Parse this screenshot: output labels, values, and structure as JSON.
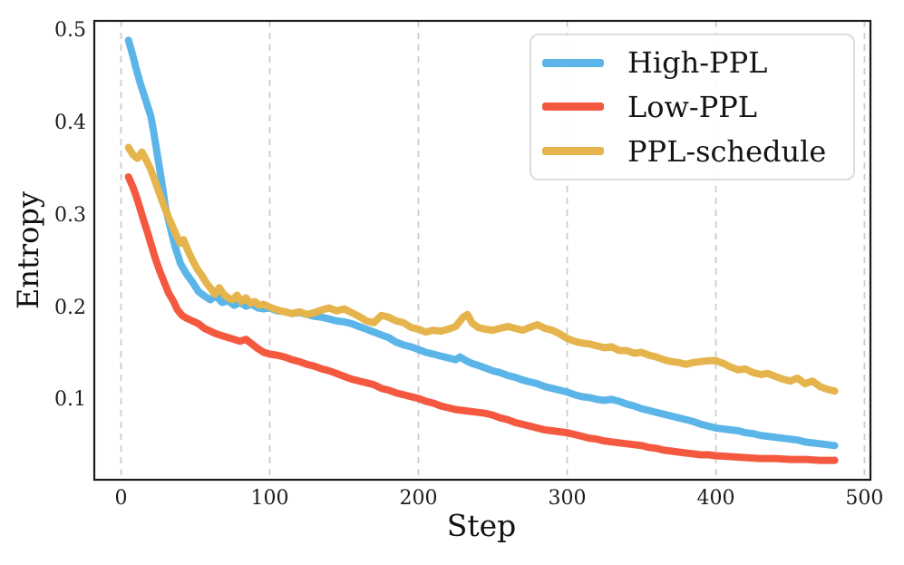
{
  "figure": {
    "background": "#ffffff",
    "spine_color": "#1a1a1a",
    "grid_color": "#cbcbcb",
    "tick_color": "#1c1c1c"
  },
  "chart_data": {
    "type": "line",
    "title": "",
    "xlabel": "Step",
    "ylabel": "Entropy",
    "xlim": [
      -18,
      504
    ],
    "ylim": [
      0.014,
      0.511
    ],
    "x_ticks": [
      0,
      100,
      200,
      300,
      400,
      500
    ],
    "y_ticks": [
      0.1,
      0.2,
      0.3,
      0.4,
      0.5
    ],
    "grid": "vertical-dashed-only",
    "legend_position": "upper-right",
    "line_width": 8,
    "series": [
      {
        "name": "High-PPL",
        "color": "#5BB5E8",
        "points": [
          [
            5,
            0.49
          ],
          [
            8,
            0.473
          ],
          [
            10,
            0.46
          ],
          [
            13,
            0.443
          ],
          [
            16,
            0.428
          ],
          [
            18,
            0.418
          ],
          [
            20,
            0.408
          ],
          [
            22,
            0.39
          ],
          [
            24,
            0.37
          ],
          [
            26,
            0.35
          ],
          [
            28,
            0.33
          ],
          [
            30,
            0.308
          ],
          [
            33,
            0.288
          ],
          [
            36,
            0.268
          ],
          [
            40,
            0.248
          ],
          [
            44,
            0.237
          ],
          [
            48,
            0.228
          ],
          [
            52,
            0.218
          ],
          [
            56,
            0.213
          ],
          [
            60,
            0.209
          ],
          [
            64,
            0.213
          ],
          [
            68,
            0.206
          ],
          [
            72,
            0.208
          ],
          [
            76,
            0.203
          ],
          [
            80,
            0.206
          ],
          [
            84,
            0.202
          ],
          [
            88,
            0.204
          ],
          [
            92,
            0.2
          ],
          [
            96,
            0.199
          ],
          [
            100,
            0.2
          ],
          [
            105,
            0.197
          ],
          [
            110,
            0.196
          ],
          [
            115,
            0.194
          ],
          [
            120,
            0.195
          ],
          [
            125,
            0.193
          ],
          [
            130,
            0.191
          ],
          [
            135,
            0.19
          ],
          [
            140,
            0.188
          ],
          [
            145,
            0.186
          ],
          [
            150,
            0.185
          ],
          [
            155,
            0.183
          ],
          [
            160,
            0.18
          ],
          [
            165,
            0.177
          ],
          [
            170,
            0.174
          ],
          [
            175,
            0.171
          ],
          [
            180,
            0.168
          ],
          [
            185,
            0.163
          ],
          [
            190,
            0.16
          ],
          [
            195,
            0.158
          ],
          [
            200,
            0.155
          ],
          [
            205,
            0.152
          ],
          [
            210,
            0.15
          ],
          [
            215,
            0.148
          ],
          [
            220,
            0.146
          ],
          [
            225,
            0.144
          ],
          [
            228,
            0.147
          ],
          [
            232,
            0.143
          ],
          [
            236,
            0.14
          ],
          [
            240,
            0.138
          ],
          [
            245,
            0.135
          ],
          [
            250,
            0.132
          ],
          [
            255,
            0.13
          ],
          [
            260,
            0.127
          ],
          [
            265,
            0.125
          ],
          [
            270,
            0.122
          ],
          [
            275,
            0.12
          ],
          [
            280,
            0.118
          ],
          [
            285,
            0.115
          ],
          [
            290,
            0.113
          ],
          [
            295,
            0.111
          ],
          [
            300,
            0.109
          ],
          [
            305,
            0.106
          ],
          [
            310,
            0.104
          ],
          [
            315,
            0.103
          ],
          [
            320,
            0.101
          ],
          [
            325,
            0.1
          ],
          [
            330,
            0.101
          ],
          [
            335,
            0.099
          ],
          [
            340,
            0.096
          ],
          [
            345,
            0.094
          ],
          [
            350,
            0.091
          ],
          [
            355,
            0.089
          ],
          [
            360,
            0.087
          ],
          [
            365,
            0.085
          ],
          [
            370,
            0.083
          ],
          [
            375,
            0.081
          ],
          [
            380,
            0.079
          ],
          [
            385,
            0.077
          ],
          [
            390,
            0.074
          ],
          [
            395,
            0.072
          ],
          [
            400,
            0.07
          ],
          [
            405,
            0.069
          ],
          [
            410,
            0.068
          ],
          [
            415,
            0.067
          ],
          [
            420,
            0.065
          ],
          [
            425,
            0.064
          ],
          [
            430,
            0.062
          ],
          [
            435,
            0.061
          ],
          [
            440,
            0.06
          ],
          [
            445,
            0.059
          ],
          [
            450,
            0.058
          ],
          [
            455,
            0.057
          ],
          [
            460,
            0.055
          ],
          [
            465,
            0.054
          ],
          [
            470,
            0.053
          ],
          [
            475,
            0.052
          ],
          [
            480,
            0.051
          ]
        ]
      },
      {
        "name": "Low-PPL",
        "color": "#F4593F",
        "points": [
          [
            5,
            0.342
          ],
          [
            8,
            0.331
          ],
          [
            10,
            0.322
          ],
          [
            12,
            0.312
          ],
          [
            15,
            0.296
          ],
          [
            18,
            0.281
          ],
          [
            20,
            0.27
          ],
          [
            23,
            0.254
          ],
          [
            26,
            0.24
          ],
          [
            29,
            0.228
          ],
          [
            32,
            0.216
          ],
          [
            35,
            0.208
          ],
          [
            38,
            0.198
          ],
          [
            41,
            0.192
          ],
          [
            44,
            0.189
          ],
          [
            48,
            0.186
          ],
          [
            52,
            0.183
          ],
          [
            56,
            0.178
          ],
          [
            60,
            0.175
          ],
          [
            64,
            0.172
          ],
          [
            68,
            0.17
          ],
          [
            72,
            0.168
          ],
          [
            76,
            0.166
          ],
          [
            80,
            0.164
          ],
          [
            84,
            0.166
          ],
          [
            88,
            0.161
          ],
          [
            92,
            0.156
          ],
          [
            96,
            0.152
          ],
          [
            100,
            0.15
          ],
          [
            105,
            0.149
          ],
          [
            110,
            0.147
          ],
          [
            115,
            0.144
          ],
          [
            120,
            0.142
          ],
          [
            125,
            0.139
          ],
          [
            130,
            0.137
          ],
          [
            135,
            0.134
          ],
          [
            140,
            0.132
          ],
          [
            145,
            0.129
          ],
          [
            150,
            0.126
          ],
          [
            155,
            0.123
          ],
          [
            160,
            0.121
          ],
          [
            165,
            0.119
          ],
          [
            170,
            0.117
          ],
          [
            175,
            0.113
          ],
          [
            180,
            0.111
          ],
          [
            185,
            0.108
          ],
          [
            190,
            0.106
          ],
          [
            195,
            0.104
          ],
          [
            200,
            0.102
          ],
          [
            205,
            0.099
          ],
          [
            210,
            0.097
          ],
          [
            215,
            0.094
          ],
          [
            220,
            0.092
          ],
          [
            225,
            0.09
          ],
          [
            230,
            0.089
          ],
          [
            235,
            0.088
          ],
          [
            240,
            0.087
          ],
          [
            245,
            0.086
          ],
          [
            250,
            0.084
          ],
          [
            255,
            0.081
          ],
          [
            260,
            0.079
          ],
          [
            265,
            0.076
          ],
          [
            270,
            0.074
          ],
          [
            275,
            0.072
          ],
          [
            280,
            0.07
          ],
          [
            285,
            0.068
          ],
          [
            290,
            0.067
          ],
          [
            295,
            0.066
          ],
          [
            300,
            0.065
          ],
          [
            305,
            0.063
          ],
          [
            310,
            0.061
          ],
          [
            315,
            0.059
          ],
          [
            320,
            0.058
          ],
          [
            325,
            0.056
          ],
          [
            330,
            0.055
          ],
          [
            335,
            0.054
          ],
          [
            340,
            0.053
          ],
          [
            345,
            0.052
          ],
          [
            350,
            0.051
          ],
          [
            355,
            0.049
          ],
          [
            360,
            0.048
          ],
          [
            365,
            0.046
          ],
          [
            370,
            0.045
          ],
          [
            375,
            0.044
          ],
          [
            380,
            0.043
          ],
          [
            385,
            0.042
          ],
          [
            390,
            0.041
          ],
          [
            395,
            0.041
          ],
          [
            400,
            0.04
          ],
          [
            410,
            0.039
          ],
          [
            420,
            0.038
          ],
          [
            430,
            0.037
          ],
          [
            440,
            0.037
          ],
          [
            450,
            0.036
          ],
          [
            460,
            0.036
          ],
          [
            470,
            0.035
          ],
          [
            480,
            0.035
          ]
        ]
      },
      {
        "name": "PPL-schedule",
        "color": "#E6B44C",
        "points": [
          [
            5,
            0.374
          ],
          [
            8,
            0.366
          ],
          [
            11,
            0.362
          ],
          [
            14,
            0.369
          ],
          [
            17,
            0.36
          ],
          [
            20,
            0.35
          ],
          [
            23,
            0.337
          ],
          [
            26,
            0.323
          ],
          [
            29,
            0.31
          ],
          [
            32,
            0.298
          ],
          [
            35,
            0.287
          ],
          [
            38,
            0.276
          ],
          [
            40,
            0.27
          ],
          [
            42,
            0.274
          ],
          [
            45,
            0.262
          ],
          [
            48,
            0.252
          ],
          [
            51,
            0.243
          ],
          [
            54,
            0.236
          ],
          [
            57,
            0.228
          ],
          [
            60,
            0.222
          ],
          [
            63,
            0.215
          ],
          [
            66,
            0.222
          ],
          [
            69,
            0.215
          ],
          [
            72,
            0.211
          ],
          [
            75,
            0.209
          ],
          [
            78,
            0.214
          ],
          [
            81,
            0.207
          ],
          [
            84,
            0.211
          ],
          [
            87,
            0.205
          ],
          [
            90,
            0.207
          ],
          [
            93,
            0.203
          ],
          [
            96,
            0.204
          ],
          [
            100,
            0.201
          ],
          [
            105,
            0.198
          ],
          [
            110,
            0.196
          ],
          [
            115,
            0.194
          ],
          [
            120,
            0.196
          ],
          [
            125,
            0.193
          ],
          [
            130,
            0.195
          ],
          [
            135,
            0.198
          ],
          [
            140,
            0.2
          ],
          [
            145,
            0.197
          ],
          [
            150,
            0.199
          ],
          [
            155,
            0.195
          ],
          [
            160,
            0.191
          ],
          [
            165,
            0.186
          ],
          [
            170,
            0.184
          ],
          [
            175,
            0.192
          ],
          [
            180,
            0.19
          ],
          [
            185,
            0.186
          ],
          [
            190,
            0.184
          ],
          [
            195,
            0.179
          ],
          [
            200,
            0.177
          ],
          [
            205,
            0.174
          ],
          [
            210,
            0.176
          ],
          [
            215,
            0.175
          ],
          [
            220,
            0.177
          ],
          [
            225,
            0.18
          ],
          [
            230,
            0.19
          ],
          [
            233,
            0.193
          ],
          [
            236,
            0.184
          ],
          [
            240,
            0.179
          ],
          [
            245,
            0.177
          ],
          [
            250,
            0.176
          ],
          [
            255,
            0.178
          ],
          [
            260,
            0.18
          ],
          [
            265,
            0.178
          ],
          [
            270,
            0.176
          ],
          [
            275,
            0.179
          ],
          [
            280,
            0.182
          ],
          [
            285,
            0.178
          ],
          [
            290,
            0.176
          ],
          [
            295,
            0.172
          ],
          [
            300,
            0.167
          ],
          [
            305,
            0.164
          ],
          [
            310,
            0.162
          ],
          [
            315,
            0.161
          ],
          [
            320,
            0.159
          ],
          [
            325,
            0.157
          ],
          [
            330,
            0.158
          ],
          [
            335,
            0.154
          ],
          [
            340,
            0.154
          ],
          [
            345,
            0.151
          ],
          [
            350,
            0.152
          ],
          [
            355,
            0.149
          ],
          [
            360,
            0.147
          ],
          [
            365,
            0.144
          ],
          [
            370,
            0.142
          ],
          [
            375,
            0.141
          ],
          [
            380,
            0.139
          ],
          [
            385,
            0.141
          ],
          [
            390,
            0.142
          ],
          [
            395,
            0.143
          ],
          [
            400,
            0.143
          ],
          [
            405,
            0.14
          ],
          [
            410,
            0.136
          ],
          [
            415,
            0.133
          ],
          [
            420,
            0.134
          ],
          [
            425,
            0.13
          ],
          [
            430,
            0.128
          ],
          [
            435,
            0.129
          ],
          [
            440,
            0.126
          ],
          [
            445,
            0.123
          ],
          [
            450,
            0.121
          ],
          [
            455,
            0.124
          ],
          [
            460,
            0.118
          ],
          [
            465,
            0.121
          ],
          [
            470,
            0.115
          ],
          [
            475,
            0.112
          ],
          [
            480,
            0.11
          ]
        ]
      }
    ]
  }
}
